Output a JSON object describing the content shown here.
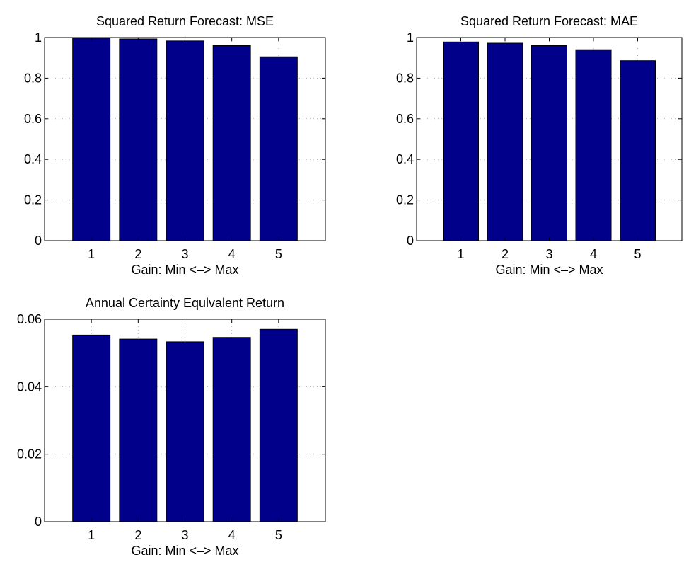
{
  "colors": {
    "bar_fill": "#00008B",
    "bar_edge": "#000000",
    "axis": "#000000",
    "grid": "#b0b0b0",
    "background": "#ffffff"
  },
  "chart_data": [
    {
      "type": "bar",
      "title": "Squared Return Forecast: MSE",
      "xlabel": "Gain: Min <–> Max",
      "ylabel": "",
      "categories": [
        "1",
        "2",
        "3",
        "4",
        "5"
      ],
      "values": [
        0.997,
        0.993,
        0.983,
        0.96,
        0.905
      ],
      "ylim": [
        0,
        1
      ],
      "yticks": [
        0,
        0.2,
        0.4,
        0.6,
        0.8,
        1
      ],
      "ytick_labels": [
        "0",
        "0.2",
        "0.4",
        "0.6",
        "0.8",
        "1"
      ],
      "grid": true
    },
    {
      "type": "bar",
      "title": "Squared Return Forecast: MAE",
      "xlabel": "Gain: Min <–> Max",
      "ylabel": "",
      "categories": [
        "1",
        "2",
        "3",
        "4",
        "5"
      ],
      "values": [
        0.978,
        0.972,
        0.96,
        0.94,
        0.886
      ],
      "ylim": [
        0,
        1
      ],
      "yticks": [
        0,
        0.2,
        0.4,
        0.6,
        0.8,
        1
      ],
      "ytick_labels": [
        "0",
        "0.2",
        "0.4",
        "0.6",
        "0.8",
        "1"
      ],
      "grid": true
    },
    {
      "type": "bar",
      "title": "Annual Certainty Equlvalent Return",
      "xlabel": "Gain: Min <–> Max",
      "ylabel": "",
      "categories": [
        "1",
        "2",
        "3",
        "4",
        "5"
      ],
      "values": [
        0.0553,
        0.0541,
        0.0533,
        0.0546,
        0.057
      ],
      "ylim": [
        0,
        0.06
      ],
      "yticks": [
        0,
        0.02,
        0.04,
        0.06
      ],
      "ytick_labels": [
        "0",
        "0.02",
        "0.04",
        "0.06"
      ],
      "grid": true
    }
  ]
}
